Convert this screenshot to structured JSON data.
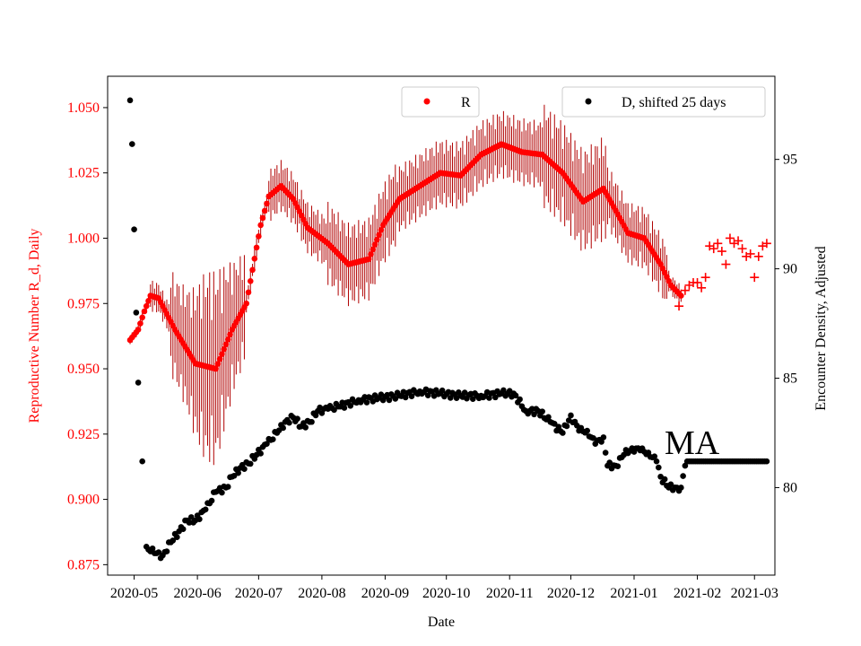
{
  "chart_data": {
    "type": "scatter",
    "title": "",
    "xlabel": "Date",
    "ylabel_left": "Reproductive Number R_d, Daily",
    "ylabel_right": "Encounter Density, Adjusted",
    "annotation": "MA",
    "x_ticks": [
      "2020-05",
      "2020-06",
      "2020-07",
      "2020-08",
      "2020-09",
      "2020-10",
      "2020-11",
      "2020-12",
      "2021-01",
      "2021-02",
      "2021-03"
    ],
    "x_range_days": [
      -13,
      314
    ],
    "y_left_ticks": [
      "0.875",
      "0.900",
      "0.925",
      "0.950",
      "0.975",
      "1.000",
      "1.025",
      "1.050"
    ],
    "y_left_range": [
      0.871,
      1.062
    ],
    "y_right_ticks": [
      "80",
      "85",
      "90",
      "95"
    ],
    "y_right_range": [
      76.0,
      98.8
    ],
    "legend_r": "R",
    "legend_d": "D, shifted 25 days",
    "colors": {
      "r": "#ff0000",
      "err": "#b00000",
      "d": "#000000",
      "left_axis": "#ff0000",
      "frame": "#000000"
    },
    "r_anchors": [
      [
        -2,
        0.961
      ],
      [
        2,
        0.965
      ],
      [
        5,
        0.972
      ],
      [
        8,
        0.978
      ],
      [
        12,
        0.977
      ],
      [
        20,
        0.965
      ],
      [
        30,
        0.952
      ],
      [
        40,
        0.95
      ],
      [
        48,
        0.965
      ],
      [
        55,
        0.975
      ],
      [
        62,
        1.005
      ],
      [
        66,
        1.016
      ],
      [
        72,
        1.02
      ],
      [
        78,
        1.015
      ],
      [
        85,
        1.004
      ],
      [
        95,
        0.998
      ],
      [
        105,
        0.99
      ],
      [
        115,
        0.992
      ],
      [
        122,
        1.005
      ],
      [
        130,
        1.015
      ],
      [
        140,
        1.02
      ],
      [
        150,
        1.025
      ],
      [
        160,
        1.024
      ],
      [
        170,
        1.032
      ],
      [
        180,
        1.036
      ],
      [
        190,
        1.033
      ],
      [
        200,
        1.032
      ],
      [
        210,
        1.025
      ],
      [
        220,
        1.014
      ],
      [
        230,
        1.019
      ],
      [
        235,
        1.012
      ],
      [
        242,
        1.002
      ],
      [
        250,
        1.0
      ],
      [
        258,
        0.99
      ],
      [
        263,
        0.982
      ],
      [
        268,
        0.978
      ]
    ],
    "r_forecast": [
      [
        267,
        0.974
      ],
      [
        270,
        0.98
      ],
      [
        272,
        0.982
      ],
      [
        274,
        0.983
      ],
      [
        276,
        0.983
      ],
      [
        278,
        0.981
      ],
      [
        280,
        0.985
      ],
      [
        282,
        0.997
      ],
      [
        284,
        0.996
      ],
      [
        286,
        0.998
      ],
      [
        288,
        0.995
      ],
      [
        290,
        0.99
      ],
      [
        292,
        1.0
      ],
      [
        294,
        0.998
      ],
      [
        296,
        0.999
      ],
      [
        298,
        0.996
      ],
      [
        300,
        0.993
      ],
      [
        302,
        0.994
      ],
      [
        304,
        0.985
      ],
      [
        306,
        0.993
      ],
      [
        308,
        0.997
      ],
      [
        310,
        0.998
      ]
    ],
    "d_anchors": [
      [
        -2,
        97.7
      ],
      [
        -1,
        95.7
      ],
      [
        0,
        91.8
      ],
      [
        1,
        88.0
      ],
      [
        2,
        84.8
      ],
      [
        4,
        81.2
      ],
      [
        6,
        77.3
      ],
      [
        10,
        77.0
      ],
      [
        14,
        76.9
      ],
      [
        18,
        77.5
      ],
      [
        22,
        78.0
      ],
      [
        26,
        78.5
      ],
      [
        30,
        78.5
      ],
      [
        35,
        79.0
      ],
      [
        40,
        79.8
      ],
      [
        45,
        80.0
      ],
      [
        48,
        80.5
      ],
      [
        52,
        80.9
      ],
      [
        56,
        81.1
      ],
      [
        60,
        81.5
      ],
      [
        65,
        82.0
      ],
      [
        70,
        82.5
      ],
      [
        74,
        83.0
      ],
      [
        78,
        83.2
      ],
      [
        82,
        82.8
      ],
      [
        86,
        83.0
      ],
      [
        90,
        83.5
      ],
      [
        95,
        83.6
      ],
      [
        100,
        83.7
      ],
      [
        110,
        84.0
      ],
      [
        120,
        84.1
      ],
      [
        130,
        84.2
      ],
      [
        140,
        84.4
      ],
      [
        150,
        84.3
      ],
      [
        160,
        84.2
      ],
      [
        170,
        84.2
      ],
      [
        180,
        84.3
      ],
      [
        186,
        84.3
      ],
      [
        192,
        83.5
      ],
      [
        198,
        83.5
      ],
      [
        204,
        83.0
      ],
      [
        210,
        82.5
      ],
      [
        214,
        83.3
      ],
      [
        218,
        82.6
      ],
      [
        222,
        82.6
      ],
      [
        226,
        82.0
      ],
      [
        230,
        82.3
      ],
      [
        232,
        81.0
      ],
      [
        236,
        81.0
      ],
      [
        240,
        81.5
      ],
      [
        244,
        81.8
      ],
      [
        248,
        81.7
      ],
      [
        252,
        81.6
      ],
      [
        256,
        81.2
      ],
      [
        258,
        80.5
      ],
      [
        262,
        80.0
      ],
      [
        266,
        80.0
      ],
      [
        268,
        80.0
      ],
      [
        270,
        81.0
      ],
      [
        310,
        81.2
      ]
    ]
  }
}
